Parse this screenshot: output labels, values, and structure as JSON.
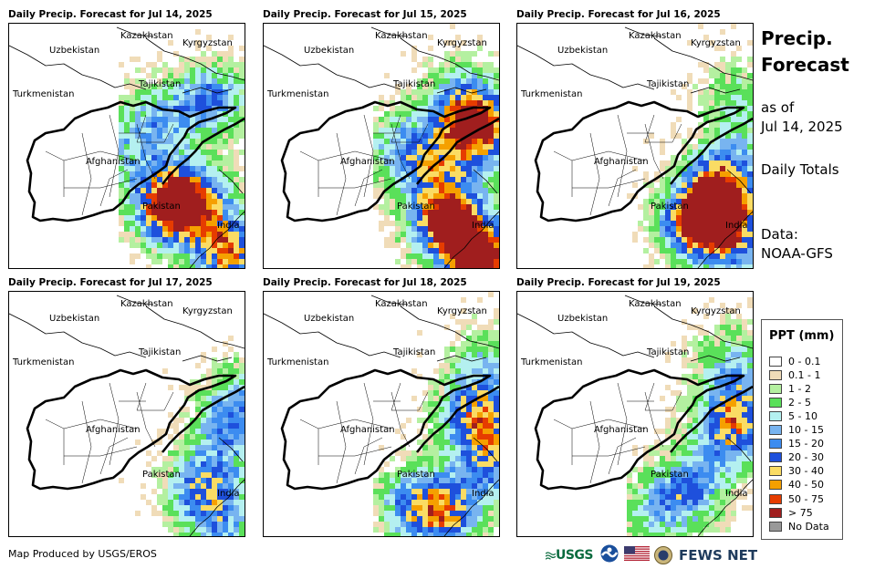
{
  "panels": [
    {
      "title": "Daily Precip. Forecast for Jul 14, 2025"
    },
    {
      "title": "Daily Precip. Forecast for Jul 15, 2025"
    },
    {
      "title": "Daily Precip. Forecast for Jul 16, 2025"
    },
    {
      "title": "Daily Precip. Forecast for Jul 17, 2025"
    },
    {
      "title": "Daily Precip. Forecast for Jul 18, 2025"
    },
    {
      "title": "Daily Precip. Forecast for Jul 19, 2025"
    }
  ],
  "country_labels": {
    "kazakhstan": "Kazakhstan",
    "kyrgyzstan": "Kyrgyzstan",
    "uzbekistan": "Uzbekistan",
    "tajikistan": "Tajikistan",
    "turkmenistan": "Turkmenistan",
    "afghanistan": "Afghanistan",
    "pakistan": "Pakistan",
    "india": "India"
  },
  "side": {
    "title_line1": "Precip.",
    "title_line2": "Forecast",
    "asof_line1": "as of",
    "asof_line2": "Jul 14, 2025",
    "totals": "Daily Totals",
    "data_line1": "Data:",
    "data_line2": "NOAA-GFS"
  },
  "legend": {
    "title": "PPT (mm)",
    "items": [
      {
        "label": "0 - 0.1",
        "color": "#ffffff"
      },
      {
        "label": "0.1 - 1",
        "color": "#f0dcb8"
      },
      {
        "label": "1 - 2",
        "color": "#b4f0a0"
      },
      {
        "label": "2 - 5",
        "color": "#5ae05a"
      },
      {
        "label": "5 - 10",
        "color": "#b4f0f0"
      },
      {
        "label": "10 - 15",
        "color": "#78b4f0"
      },
      {
        "label": "15 - 20",
        "color": "#3c8cf0"
      },
      {
        "label": "20 - 30",
        "color": "#1e50dc"
      },
      {
        "label": "30 - 40",
        "color": "#fadc64"
      },
      {
        "label": "40 - 50",
        "color": "#f5a000"
      },
      {
        "label": "50 - 75",
        "color": "#e63c00"
      },
      {
        "label": "> 75",
        "color": "#a01e1e"
      },
      {
        "label": "No Data",
        "color": "#999999"
      }
    ]
  },
  "footer": {
    "credit": "Map Produced by USGS/EROS",
    "usgs_logo": "USGS",
    "fews_logo": "FEWS NET"
  }
}
